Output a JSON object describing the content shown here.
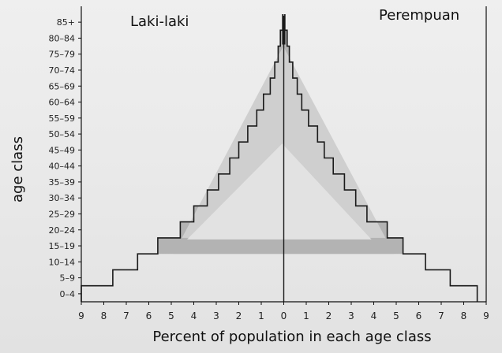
{
  "chart_data": {
    "type": "population-pyramid",
    "left_label": "Laki-laki",
    "right_label": "Perempuan",
    "xlabel": "Percent of population in each age class",
    "ylabel": "age class",
    "x_tick_labels": [
      "9",
      "8",
      "7",
      "6",
      "5",
      "4",
      "3",
      "2",
      "1",
      "0",
      "1",
      "2",
      "3",
      "4",
      "5",
      "6",
      "7",
      "8",
      "9"
    ],
    "xlim": [
      -9,
      9
    ],
    "age_classes": [
      "0–4",
      "5–9",
      "10–14",
      "15–19",
      "20–24",
      "25–29",
      "30–34",
      "35–39",
      "40–44",
      "45–49",
      "50–54",
      "55–59",
      "60–64",
      "65–69",
      "70–74",
      "75–79",
      "80–84",
      "85+"
    ],
    "series": [
      {
        "group": "Laki-laki",
        "values": [
          9.0,
          7.6,
          6.5,
          5.6,
          4.6,
          4.0,
          3.4,
          2.9,
          2.4,
          2.0,
          1.6,
          1.2,
          0.9,
          0.6,
          0.4,
          0.25,
          0.15,
          0.05
        ]
      },
      {
        "group": "Perempuan",
        "values": [
          8.6,
          7.4,
          6.3,
          5.3,
          4.6,
          3.7,
          3.2,
          2.7,
          2.2,
          1.8,
          1.5,
          1.1,
          0.8,
          0.6,
          0.4,
          0.25,
          0.15,
          0.05
        ]
      }
    ],
    "shaded_regions": [
      {
        "fill": "#b3b3b3",
        "description_free": true,
        "left": [
          [
            0.1,
            17
          ],
          [
            0.3,
            14
          ],
          [
            0.6,
            13
          ],
          [
            0.9,
            12
          ],
          [
            1.2,
            11
          ],
          [
            1.6,
            10
          ],
          [
            2.0,
            9
          ],
          [
            2.4,
            8
          ],
          [
            2.9,
            7
          ],
          [
            3.4,
            6
          ],
          [
            4.0,
            5
          ],
          [
            4.6,
            4
          ],
          [
            5.6,
            3
          ]
        ],
        "right": [
          [
            0.1,
            17
          ],
          [
            0.3,
            14
          ],
          [
            0.6,
            13
          ],
          [
            0.9,
            12
          ],
          [
            1.1,
            11
          ],
          [
            1.5,
            10
          ],
          [
            1.8,
            9
          ],
          [
            2.2,
            8
          ],
          [
            2.7,
            7
          ],
          [
            3.2,
            6
          ],
          [
            3.7,
            5
          ],
          [
            4.6,
            4
          ],
          [
            5.3,
            3
          ]
        ]
      }
    ],
    "colors": {
      "outline": "#1a1a1a",
      "outer_fill": "#b3b3b3",
      "mid_fill": "#cfcfcf",
      "inner_fill": "#e2e2e2",
      "background": "#ececec"
    }
  }
}
